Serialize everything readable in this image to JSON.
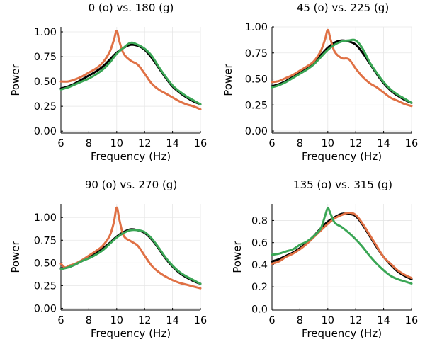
{
  "chart_data": [
    {
      "type": "line",
      "title": "0 (o) vs. 180 (g)",
      "xlabel": "Frequency (Hz)",
      "ylabel": "Power",
      "xlim": [
        6,
        16
      ],
      "ylim": [
        -0.02,
        1.05
      ],
      "xticks": [
        6,
        8,
        10,
        12,
        14,
        16
      ],
      "yticks": [
        0.0,
        0.25,
        0.5,
        0.75,
        1.0
      ],
      "ytick_labels": [
        "0.00",
        "0.25",
        "0.50",
        "0.75",
        "1.00"
      ],
      "grid": true,
      "legend": "none",
      "series": [
        {
          "color": "#000000",
          "x": [
            6,
            6.5,
            7,
            7.5,
            8,
            8.5,
            9,
            9.5,
            10,
            10.5,
            11,
            11.5,
            12,
            12.5,
            13,
            13.5,
            14,
            14.5,
            15,
            15.5,
            16
          ],
          "y": [
            0.43,
            0.45,
            0.48,
            0.52,
            0.56,
            0.6,
            0.65,
            0.72,
            0.79,
            0.84,
            0.87,
            0.86,
            0.82,
            0.74,
            0.64,
            0.54,
            0.45,
            0.39,
            0.34,
            0.3,
            0.27
          ]
        },
        {
          "color": "#e07145",
          "x": [
            6,
            6.5,
            7,
            7.5,
            8,
            8.5,
            9,
            9.5,
            9.8,
            10,
            10.2,
            10.5,
            11,
            11.5,
            12,
            12.5,
            13,
            13.5,
            14,
            14.5,
            15,
            15.5,
            16
          ],
          "y": [
            0.5,
            0.5,
            0.52,
            0.55,
            0.59,
            0.63,
            0.69,
            0.8,
            0.92,
            1.01,
            0.9,
            0.78,
            0.71,
            0.67,
            0.58,
            0.48,
            0.42,
            0.38,
            0.34,
            0.3,
            0.27,
            0.25,
            0.22
          ]
        },
        {
          "color": "#3aa655",
          "x": [
            6,
            6.5,
            7,
            7.5,
            8,
            8.5,
            9,
            9.5,
            10,
            10.5,
            11,
            11.5,
            12,
            12.5,
            13,
            13.5,
            14,
            14.5,
            15,
            15.5,
            16
          ],
          "y": [
            0.42,
            0.44,
            0.47,
            0.5,
            0.53,
            0.57,
            0.62,
            0.69,
            0.78,
            0.84,
            0.89,
            0.87,
            0.83,
            0.76,
            0.65,
            0.55,
            0.46,
            0.4,
            0.35,
            0.31,
            0.27
          ]
        }
      ]
    },
    {
      "type": "line",
      "title": "45 (o) vs. 225 (g)",
      "xlabel": "Frequency (Hz)",
      "ylabel": "Power",
      "xlim": [
        6,
        16
      ],
      "ylim": [
        -0.02,
        1.0
      ],
      "xticks": [
        6,
        8,
        10,
        12,
        14,
        16
      ],
      "yticks": [
        0.0,
        0.25,
        0.5,
        0.75,
        1.0
      ],
      "ytick_labels": [
        "0.00",
        "0.25",
        "0.50",
        "0.75",
        "1.00"
      ],
      "grid": true,
      "legend": "none",
      "series": [
        {
          "color": "#000000",
          "x": [
            6,
            6.5,
            7,
            7.5,
            8,
            8.5,
            9,
            9.5,
            10,
            10.5,
            11,
            11.5,
            12,
            12.5,
            13,
            13.5,
            14,
            14.5,
            15,
            15.5,
            16
          ],
          "y": [
            0.43,
            0.45,
            0.48,
            0.52,
            0.56,
            0.61,
            0.66,
            0.73,
            0.8,
            0.85,
            0.87,
            0.86,
            0.83,
            0.75,
            0.65,
            0.55,
            0.46,
            0.39,
            0.34,
            0.3,
            0.27
          ]
        },
        {
          "color": "#e07145",
          "x": [
            6,
            6.5,
            7,
            7.5,
            8,
            8.5,
            9,
            9.5,
            9.8,
            10,
            10.2,
            10.5,
            11,
            11.5,
            12,
            12.5,
            13,
            13.5,
            14,
            14.5,
            15,
            15.5,
            16
          ],
          "y": [
            0.47,
            0.48,
            0.51,
            0.54,
            0.58,
            0.62,
            0.67,
            0.77,
            0.88,
            0.97,
            0.88,
            0.76,
            0.7,
            0.69,
            0.6,
            0.52,
            0.46,
            0.42,
            0.37,
            0.32,
            0.29,
            0.26,
            0.24
          ]
        },
        {
          "color": "#3aa655",
          "x": [
            6,
            6.5,
            7,
            7.5,
            8,
            8.5,
            9,
            9.5,
            10,
            10.5,
            11,
            11.5,
            12,
            12.5,
            13,
            13.5,
            14,
            14.5,
            15,
            15.5,
            16
          ],
          "y": [
            0.42,
            0.44,
            0.47,
            0.51,
            0.55,
            0.59,
            0.64,
            0.71,
            0.78,
            0.83,
            0.86,
            0.87,
            0.87,
            0.79,
            0.66,
            0.56,
            0.47,
            0.4,
            0.35,
            0.31,
            0.27
          ]
        }
      ]
    },
    {
      "type": "line",
      "title": "90 (o) vs. 270 (g)",
      "xlabel": "Frequency (Hz)",
      "ylabel": "Power",
      "xlim": [
        6,
        16
      ],
      "ylim": [
        -0.02,
        1.15
      ],
      "xticks": [
        6,
        8,
        10,
        12,
        14,
        16
      ],
      "yticks": [
        0.0,
        0.25,
        0.5,
        0.75,
        1.0
      ],
      "ytick_labels": [
        "0.00",
        "0.25",
        "0.50",
        "0.75",
        "1.00"
      ],
      "grid": true,
      "legend": "none",
      "series": [
        {
          "color": "#000000",
          "x": [
            6,
            6.5,
            7,
            7.5,
            8,
            8.5,
            9,
            9.5,
            10,
            10.5,
            11,
            11.5,
            12,
            12.5,
            13,
            13.5,
            14,
            14.5,
            15,
            15.5,
            16
          ],
          "y": [
            0.44,
            0.45,
            0.48,
            0.52,
            0.56,
            0.61,
            0.66,
            0.72,
            0.79,
            0.84,
            0.87,
            0.86,
            0.83,
            0.76,
            0.66,
            0.55,
            0.46,
            0.39,
            0.34,
            0.3,
            0.27
          ]
        },
        {
          "color": "#e07145",
          "x": [
            6,
            6.3,
            6.6,
            7,
            7.5,
            8,
            8.5,
            9,
            9.5,
            9.8,
            10,
            10.2,
            10.5,
            11,
            11.5,
            12,
            12.5,
            13,
            13.5,
            14,
            14.5,
            15,
            15.5,
            16
          ],
          "y": [
            0.49,
            0.45,
            0.47,
            0.49,
            0.53,
            0.58,
            0.63,
            0.69,
            0.8,
            0.95,
            1.11,
            0.97,
            0.8,
            0.74,
            0.69,
            0.58,
            0.47,
            0.4,
            0.35,
            0.31,
            0.28,
            0.26,
            0.24,
            0.22
          ]
        },
        {
          "color": "#3aa655",
          "x": [
            6,
            6.5,
            7,
            7.5,
            8,
            8.5,
            9,
            9.5,
            10,
            10.5,
            11,
            11.5,
            12,
            12.5,
            13,
            13.5,
            14,
            14.5,
            15,
            15.5,
            16
          ],
          "y": [
            0.43,
            0.45,
            0.48,
            0.52,
            0.55,
            0.59,
            0.64,
            0.71,
            0.78,
            0.83,
            0.86,
            0.86,
            0.84,
            0.77,
            0.67,
            0.56,
            0.47,
            0.4,
            0.35,
            0.31,
            0.27
          ]
        }
      ]
    },
    {
      "type": "line",
      "title": "135 (o) vs. 315 (g)",
      "xlabel": "Frequency (Hz)",
      "ylabel": "Power",
      "xlim": [
        6,
        16
      ],
      "ylim": [
        -0.01,
        0.95
      ],
      "xticks": [
        6,
        8,
        10,
        12,
        14,
        16
      ],
      "yticks": [
        0.0,
        0.2,
        0.4,
        0.6,
        0.8
      ],
      "ytick_labels": [
        "0.0",
        "0.2",
        "0.4",
        "0.6",
        "0.8"
      ],
      "grid": true,
      "legend": "none",
      "series": [
        {
          "color": "#000000",
          "x": [
            6,
            6.5,
            7,
            7.5,
            8,
            8.5,
            9,
            9.5,
            10,
            10.5,
            11,
            11.5,
            12,
            12.5,
            13,
            13.5,
            14,
            14.5,
            15,
            15.5,
            16
          ],
          "y": [
            0.43,
            0.45,
            0.48,
            0.51,
            0.55,
            0.6,
            0.66,
            0.73,
            0.79,
            0.83,
            0.86,
            0.86,
            0.84,
            0.76,
            0.66,
            0.56,
            0.47,
            0.4,
            0.34,
            0.3,
            0.27
          ]
        },
        {
          "color": "#e07145",
          "x": [
            6,
            6.5,
            7,
            7.5,
            8,
            8.5,
            9,
            9.5,
            10,
            10.5,
            11,
            11.5,
            12,
            12.5,
            13,
            13.5,
            14,
            14.5,
            15,
            15.5,
            16
          ],
          "y": [
            0.41,
            0.43,
            0.47,
            0.5,
            0.54,
            0.59,
            0.65,
            0.71,
            0.77,
            0.82,
            0.85,
            0.87,
            0.85,
            0.77,
            0.67,
            0.57,
            0.47,
            0.41,
            0.35,
            0.31,
            0.28
          ]
        },
        {
          "color": "#3aa655",
          "x": [
            6,
            6.5,
            7,
            7.5,
            8,
            8.5,
            9,
            9.5,
            9.8,
            10,
            10.2,
            10.5,
            11,
            11.5,
            12,
            12.5,
            13,
            13.5,
            14,
            14.5,
            15,
            15.5,
            16
          ],
          "y": [
            0.49,
            0.5,
            0.52,
            0.54,
            0.58,
            0.61,
            0.66,
            0.73,
            0.84,
            0.91,
            0.86,
            0.78,
            0.74,
            0.69,
            0.63,
            0.56,
            0.48,
            0.41,
            0.35,
            0.3,
            0.27,
            0.25,
            0.23
          ]
        }
      ]
    }
  ]
}
